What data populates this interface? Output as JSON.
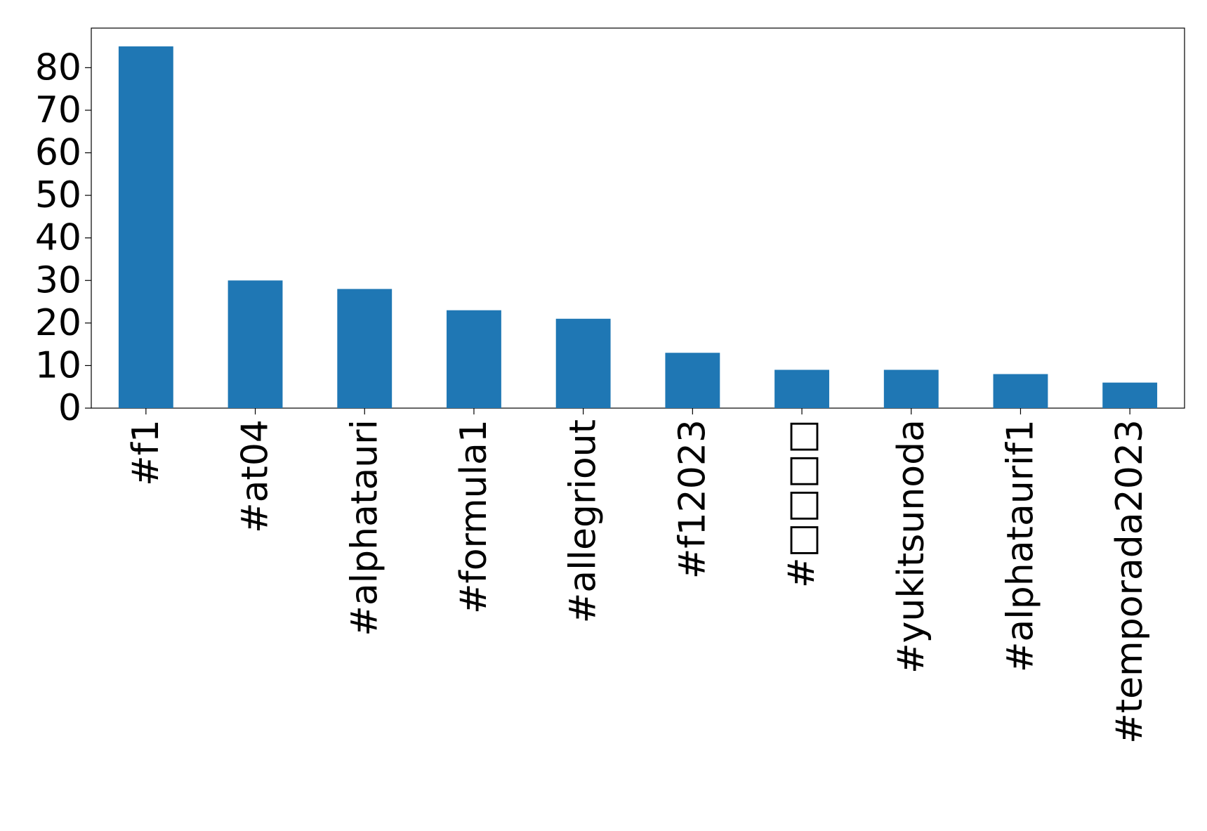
{
  "chart_data": {
    "type": "bar",
    "categories": [
      "#f1",
      "#at04",
      "#alphatauri",
      "#formula1",
      "#allegriout",
      "#f12023",
      "#□□□□",
      "#yukitsunoda",
      "#alphataurif1",
      "#temporada2023"
    ],
    "values": [
      85,
      30,
      28,
      23,
      21,
      13,
      9,
      9,
      8,
      6
    ],
    "color": "#1f77b4",
    "ylim": [
      0,
      89.3
    ],
    "yticks": [
      0,
      10,
      20,
      30,
      40,
      50,
      60,
      70,
      80
    ],
    "grid": false
  }
}
